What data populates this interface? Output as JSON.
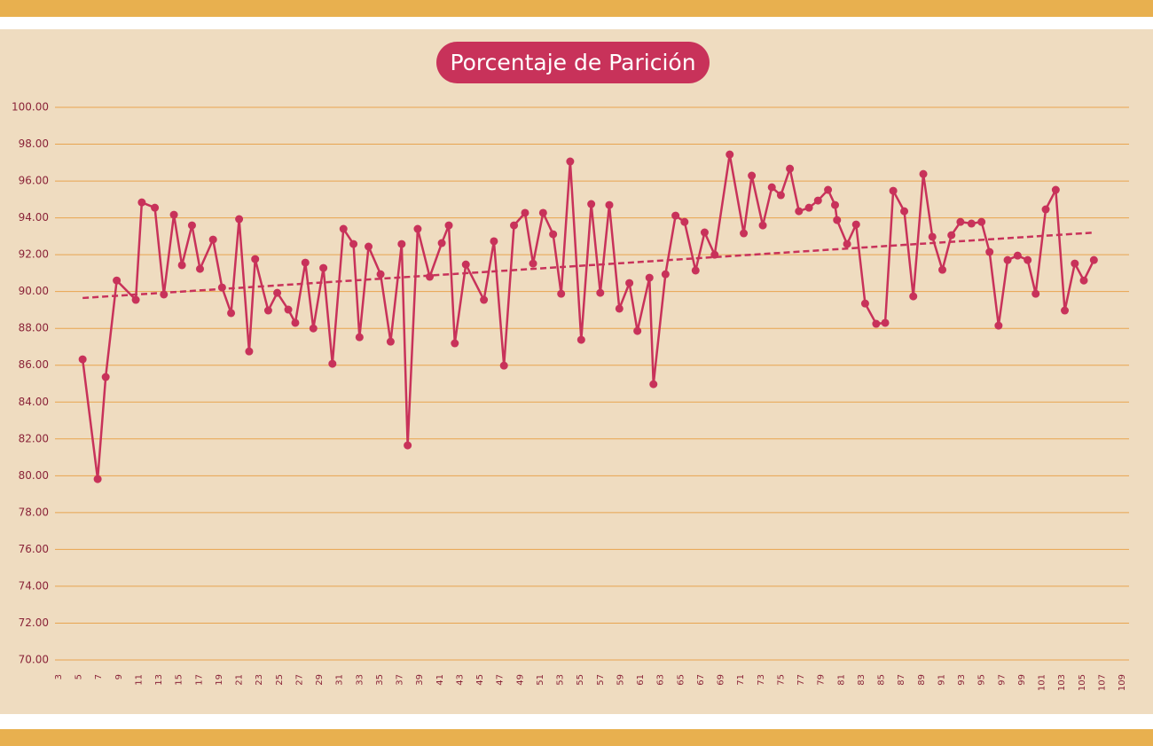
{
  "chart_data": {
    "type": "line",
    "title": "Porcentaje de Parición",
    "color": "#c8325a",
    "grid": true,
    "x": [
      5.4,
      6.9,
      7.7,
      8.8,
      10.7,
      11.3,
      12.6,
      13.5,
      14.5,
      15.3,
      16.3,
      17.1,
      18.4,
      19.3,
      20.2,
      21.0,
      22.0,
      22.6,
      23.9,
      24.8,
      25.9,
      26.6,
      27.6,
      28.4,
      29.4,
      30.3,
      31.4,
      32.4,
      33.0,
      33.9,
      35.1,
      36.1,
      37.2,
      37.8,
      38.8,
      40.0,
      41.2,
      41.9,
      42.5,
      43.6,
      45.4,
      46.4,
      47.4,
      48.4,
      49.5,
      50.3,
      51.3,
      52.3,
      53.1,
      54.0,
      55.1,
      56.1,
      57.0,
      57.9,
      58.9,
      59.9,
      60.7,
      61.9,
      62.3,
      63.5,
      64.5,
      65.4,
      66.5,
      67.4,
      68.4,
      69.9,
      71.3,
      72.1,
      73.2,
      74.1,
      75.0,
      75.9,
      76.8,
      77.8,
      78.7,
      79.7,
      80.4,
      80.6,
      81.6,
      82.5,
      83.4,
      84.5,
      85.4,
      86.2,
      87.3,
      88.2,
      89.2,
      90.1,
      91.1,
      92.0,
      92.9,
      94.0,
      95.0,
      95.8,
      96.7,
      97.6,
      98.6,
      99.6,
      100.4,
      101.4,
      102.4,
      103.3,
      104.3,
      105.2,
      106.2
    ],
    "values": [
      86.32,
      79.82,
      85.36,
      90.6,
      89.55,
      94.84,
      94.55,
      89.84,
      94.17,
      91.43,
      93.59,
      91.23,
      92.82,
      90.22,
      88.83,
      93.93,
      86.75,
      91.76,
      88.97,
      89.93,
      89.02,
      88.3,
      91.57,
      88.0,
      91.28,
      86.08,
      93.4,
      92.58,
      87.52,
      92.44,
      90.94,
      87.28,
      92.58,
      81.65,
      93.4,
      90.8,
      92.63,
      93.59,
      87.19,
      91.47,
      89.55,
      92.73,
      85.98,
      93.59,
      94.27,
      91.52,
      94.27,
      93.11,
      89.88,
      97.06,
      87.38,
      94.75,
      89.93,
      94.7,
      89.07,
      90.46,
      87.86,
      90.75,
      84.97,
      90.94,
      94.12,
      93.78,
      91.14,
      93.21,
      92.0,
      97.44,
      93.16,
      96.29,
      93.59,
      95.66,
      95.23,
      96.67,
      94.36,
      94.55,
      94.94,
      95.52,
      94.7,
      93.88,
      92.58,
      93.64,
      89.35,
      88.25,
      88.3,
      95.47,
      94.36,
      89.74,
      96.38,
      92.97,
      91.18,
      93.06,
      93.78,
      93.69,
      93.78,
      92.15,
      88.15,
      91.71,
      91.95,
      91.71,
      89.88,
      94.46,
      95.52,
      88.97,
      91.52,
      90.6,
      91.71
    ],
    "trendline": {
      "x": [
        5.4,
        106.2
      ],
      "values": [
        89.65,
        93.2
      ]
    },
    "xlim": [
      3,
      109
    ],
    "xticks": [
      3,
      5,
      7,
      9,
      11,
      13,
      15,
      17,
      19,
      21,
      23,
      25,
      27,
      29,
      31,
      33,
      35,
      37,
      39,
      41,
      43,
      45,
      47,
      49,
      51,
      53,
      55,
      57,
      59,
      61,
      63,
      65,
      67,
      69,
      71,
      73,
      75,
      77,
      79,
      81,
      83,
      85,
      87,
      89,
      91,
      93,
      95,
      97,
      99,
      101,
      103,
      105,
      107,
      109
    ],
    "ylim": [
      70,
      100
    ],
    "yticks": [
      {
        "value": 70,
        "label": "70.00"
      },
      {
        "value": 72,
        "label": "72.00"
      },
      {
        "value": 74,
        "label": "74.00"
      },
      {
        "value": 76,
        "label": "76.00"
      },
      {
        "value": 78,
        "label": "78.00"
      },
      {
        "value": 80,
        "label": "80.00"
      },
      {
        "value": 82,
        "label": "82.00"
      },
      {
        "value": 84,
        "label": "84.00"
      },
      {
        "value": 86,
        "label": "86.00"
      },
      {
        "value": 88,
        "label": "88.00"
      },
      {
        "value": 90,
        "label": "90.00"
      },
      {
        "value": 92,
        "label": "92.00"
      },
      {
        "value": 94,
        "label": "94.00"
      },
      {
        "value": 96,
        "label": "96.00"
      },
      {
        "value": 98,
        "label": "98.00"
      },
      {
        "value": 100,
        "label": "100.00"
      }
    ]
  }
}
